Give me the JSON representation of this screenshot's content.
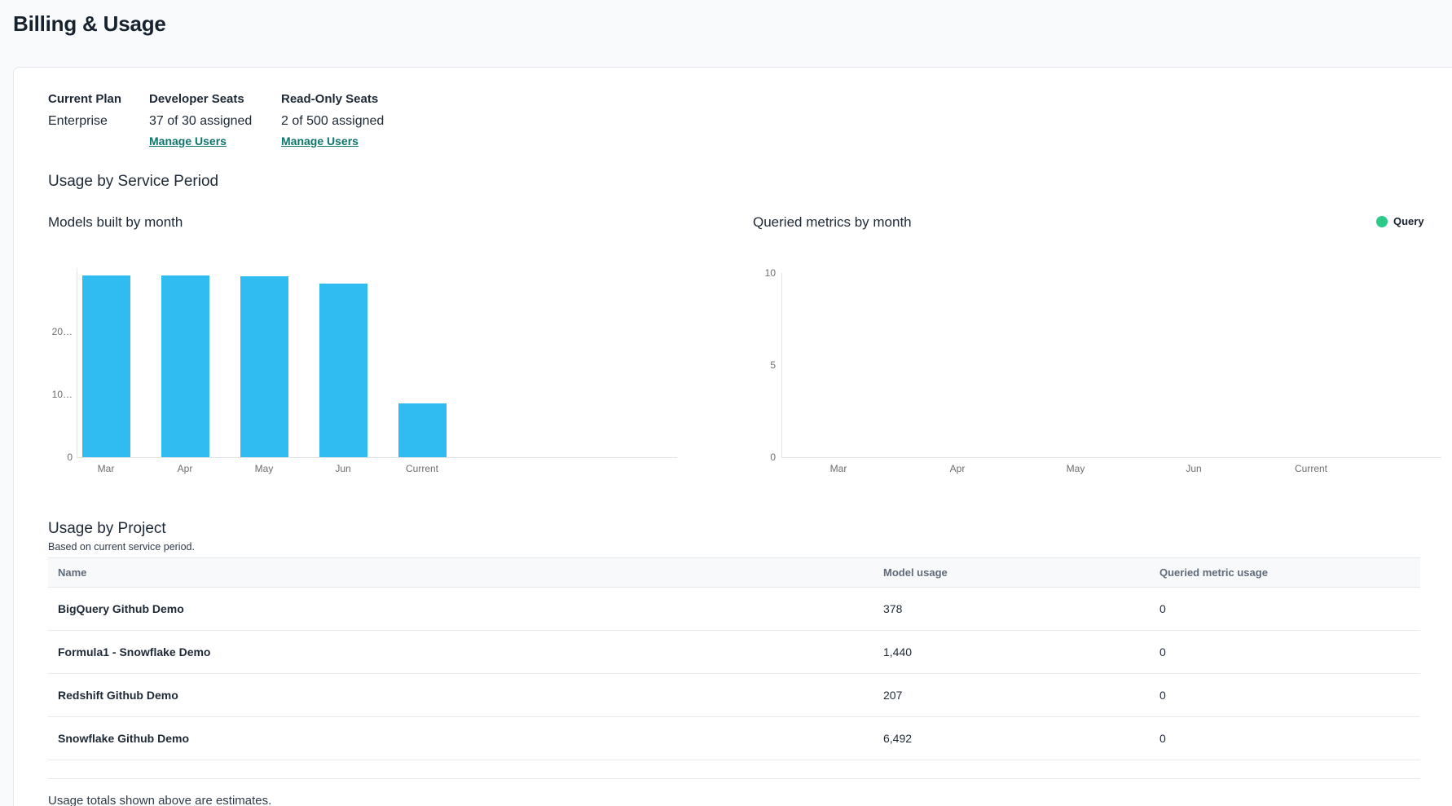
{
  "page": {
    "title": "Billing & Usage"
  },
  "plan": {
    "current_plan_label": "Current Plan",
    "current_plan_value": "Enterprise",
    "developer_seats_label": "Developer Seats",
    "developer_seats_value": "37 of 30 assigned",
    "developer_manage_label": "Manage Users",
    "readonly_seats_label": "Read-Only Seats",
    "readonly_seats_value": "2 of 500 assigned",
    "readonly_manage_label": "Manage Users"
  },
  "usage_section": {
    "title": "Usage by Service Period"
  },
  "chart_data": [
    {
      "type": "bar",
      "title": "Models built by month",
      "categories": [
        "Mar",
        "Apr",
        "May",
        "Jun",
        "Current"
      ],
      "values": [
        29000,
        28900,
        28800,
        27700,
        8517
      ],
      "ylim": [
        0,
        30000
      ],
      "yticks": [
        0,
        10000,
        20000
      ],
      "ytick_labels": [
        "0",
        "10…",
        "20…"
      ],
      "xlabel": "",
      "ylabel": "",
      "grid": false,
      "legend": null,
      "bar_color": "#30bcf0"
    },
    {
      "type": "bar",
      "title": "Queried metrics by month",
      "categories": [
        "Mar",
        "Apr",
        "May",
        "Jun",
        "Current"
      ],
      "values": [
        0,
        0,
        0,
        0,
        0
      ],
      "ylim": [
        0,
        10
      ],
      "yticks": [
        0,
        5,
        10
      ],
      "ytick_labels": [
        "0",
        "5",
        "10"
      ],
      "xlabel": "",
      "ylabel": "",
      "grid": false,
      "legend": "top-right",
      "series_name": "Query",
      "series_color": "#2bc98a"
    }
  ],
  "project_section": {
    "title": "Usage by Project",
    "subtitle": "Based on current service period.",
    "table": {
      "columns": [
        "Name",
        "Model usage",
        "Queried metric usage"
      ],
      "rows": [
        {
          "name": "BigQuery Github Demo",
          "model_usage": "378",
          "queried_metric_usage": "0"
        },
        {
          "name": "Formula1 - Snowflake Demo",
          "model_usage": "1,440",
          "queried_metric_usage": "0"
        },
        {
          "name": "Redshift Github Demo",
          "model_usage": "207",
          "queried_metric_usage": "0"
        },
        {
          "name": "Snowflake Github Demo",
          "model_usage": "6,492",
          "queried_metric_usage": "0"
        }
      ]
    },
    "footnote": "Usage totals shown above are estimates."
  },
  "colors": {
    "bar_blue": "#30bcf0",
    "legend_green": "#2bc98a",
    "link_teal": "#0e756b",
    "heading_navy": "#16222e"
  }
}
